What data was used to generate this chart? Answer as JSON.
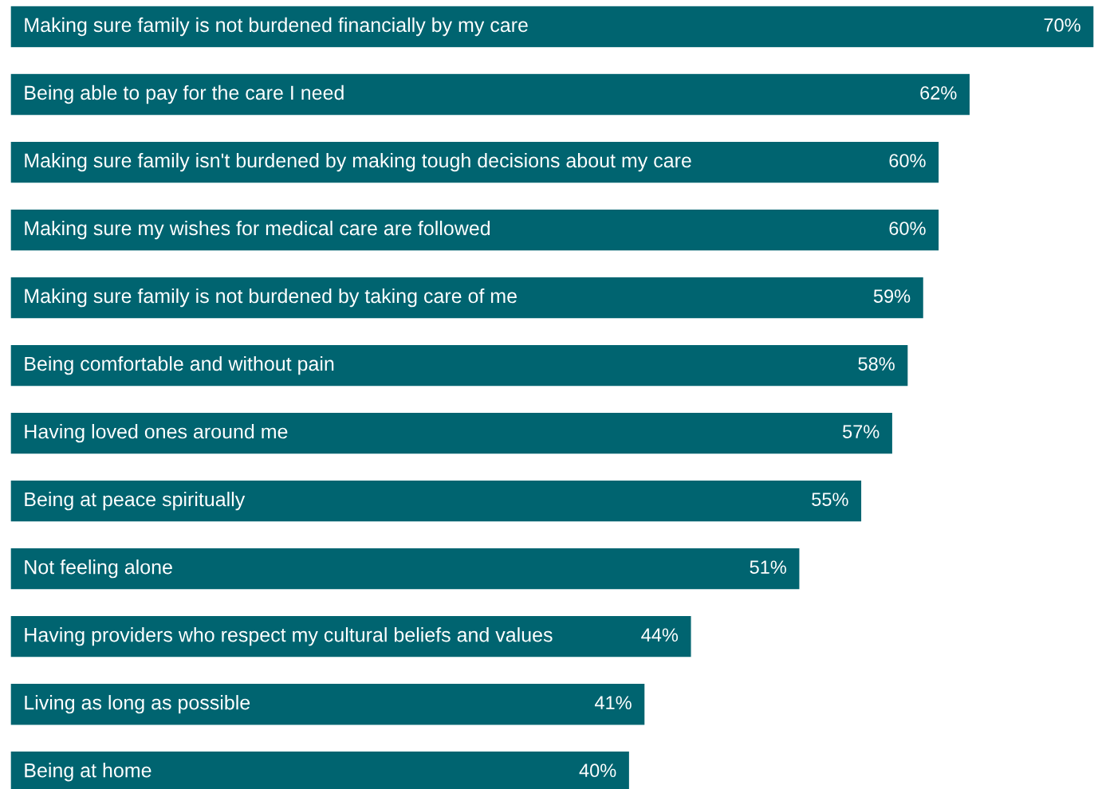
{
  "chart_data": {
    "type": "bar",
    "orientation": "horizontal",
    "color": "#006470",
    "categories": [
      "Making sure family is not burdened financially by my care",
      "Being able to pay for the care I need",
      "Making sure family isn't burdened by making tough decisions about my care",
      "Making sure my wishes for medical care are followed",
      "Making sure family is not burdened by taking care of me",
      "Being comfortable and without pain",
      "Having loved ones around me",
      "Being at peace spiritually",
      "Not feeling alone",
      "Having providers who respect my cultural beliefs and values",
      "Living as long as possible",
      "Being at home"
    ],
    "values": [
      70,
      62,
      60,
      60,
      59,
      58,
      57,
      55,
      51,
      44,
      41,
      40
    ],
    "value_labels": [
      "70%",
      "62%",
      "60%",
      "60%",
      "59%",
      "58%",
      "57%",
      "55%",
      "51%",
      "44%",
      "41%",
      "40%"
    ]
  }
}
